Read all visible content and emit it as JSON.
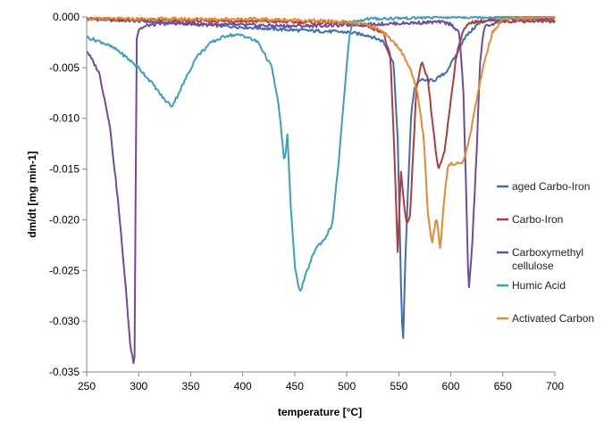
{
  "chart_data": {
    "type": "line",
    "xlabel": "temperature [°C]",
    "ylabel": "dm/dt [mg min-1]",
    "xlim": [
      250,
      700
    ],
    "ylim": [
      -0.035,
      0.0
    ],
    "xticks": [
      250,
      300,
      350,
      400,
      450,
      500,
      550,
      600,
      650,
      700
    ],
    "yticks": [
      -0.035,
      -0.03,
      -0.025,
      -0.02,
      -0.015,
      -0.01,
      -0.005,
      0.0
    ],
    "grid": false,
    "legend_position": "right",
    "series": [
      {
        "name": "aged Carbo-Iron",
        "color": "#3d6eb4",
        "x": [
          250,
          300,
          350,
          400,
          450,
          500,
          520,
          535,
          545,
          549,
          552,
          554,
          556,
          559,
          562,
          565,
          570,
          578,
          585,
          595,
          605,
          612,
          625,
          635,
          645,
          660,
          700
        ],
        "y": [
          -0.0002,
          -0.0004,
          -0.0007,
          -0.001,
          -0.0013,
          -0.0015,
          -0.0018,
          -0.0024,
          -0.0045,
          -0.012,
          -0.026,
          -0.0328,
          -0.025,
          -0.0165,
          -0.0095,
          -0.007,
          -0.0062,
          -0.0063,
          -0.0062,
          -0.0055,
          -0.0038,
          -0.0022,
          -0.0008,
          -0.0003,
          -0.0001,
          0.0,
          0.0
        ]
      },
      {
        "name": "Carbo-Iron",
        "color": "#b33b3b",
        "x": [
          250,
          300,
          350,
          400,
          450,
          500,
          520,
          535,
          542,
          546,
          549,
          552,
          555,
          558,
          561,
          564,
          567,
          572,
          578,
          583,
          588,
          594,
          600,
          605,
          612,
          620,
          630,
          650,
          700
        ],
        "y": [
          -0.0002,
          -0.0003,
          -0.0004,
          -0.0004,
          -0.0005,
          -0.0006,
          -0.0009,
          -0.0015,
          -0.004,
          -0.014,
          -0.0235,
          -0.015,
          -0.0185,
          -0.0205,
          -0.0195,
          -0.013,
          -0.007,
          -0.0045,
          -0.0062,
          -0.011,
          -0.0152,
          -0.0132,
          -0.0082,
          -0.004,
          -0.0012,
          -0.0005,
          -0.0004,
          -0.0004,
          -0.0004
        ]
      },
      {
        "name": "Carboxymethyl cellulose",
        "color": "#6f4aa0",
        "x": [
          250,
          262,
          272,
          280,
          287,
          292,
          296,
          298,
          300,
          310,
          330,
          360,
          400,
          450,
          500,
          560,
          590,
          600,
          608,
          612,
          615,
          617,
          620,
          625,
          628,
          632,
          650,
          700
        ],
        "y": [
          -0.0033,
          -0.0055,
          -0.0105,
          -0.018,
          -0.026,
          -0.0325,
          -0.0345,
          -0.0022,
          -0.0012,
          -0.0008,
          -0.0006,
          -0.0007,
          -0.0008,
          -0.0009,
          -0.0008,
          -0.0006,
          -0.0005,
          -0.0007,
          -0.0015,
          -0.007,
          -0.018,
          -0.0272,
          -0.0235,
          -0.013,
          -0.0045,
          -0.001,
          -0.0003,
          -0.0002
        ]
      },
      {
        "name": "Humic Acid",
        "color": "#3aa0bc",
        "x": [
          250,
          265,
          280,
          300,
          315,
          325,
          332,
          340,
          355,
          370,
          385,
          400,
          415,
          428,
          435,
          440,
          443,
          446,
          450,
          455,
          462,
          470,
          478,
          486,
          492,
          497,
          502,
          505,
          520,
          560,
          600,
          700
        ],
        "y": [
          -0.002,
          -0.0025,
          -0.0033,
          -0.005,
          -0.0068,
          -0.0082,
          -0.0088,
          -0.0072,
          -0.004,
          -0.0025,
          -0.0018,
          -0.0018,
          -0.0025,
          -0.005,
          -0.009,
          -0.0145,
          -0.0115,
          -0.0185,
          -0.0245,
          -0.0272,
          -0.025,
          -0.0228,
          -0.022,
          -0.0205,
          -0.0145,
          -0.0085,
          -0.0025,
          -0.0005,
          -0.0002,
          -0.0001,
          0.0,
          0.0
        ]
      },
      {
        "name": "Activated Carbon",
        "color": "#e8892c",
        "x": [
          250,
          300,
          350,
          400,
          450,
          500,
          520,
          535,
          550,
          560,
          568,
          574,
          578,
          582,
          586,
          590,
          593,
          597,
          600,
          606,
          612,
          618,
          625,
          632,
          640,
          650,
          700
        ],
        "y": [
          -0.0002,
          -0.0002,
          -0.0002,
          -0.0002,
          -0.0003,
          -0.0005,
          -0.0008,
          -0.0015,
          -0.003,
          -0.0048,
          -0.0075,
          -0.012,
          -0.0195,
          -0.0225,
          -0.0195,
          -0.023,
          -0.0185,
          -0.0148,
          -0.0145,
          -0.0145,
          -0.0142,
          -0.012,
          -0.008,
          -0.0045,
          -0.0015,
          -0.0002,
          0.0
        ]
      }
    ]
  }
}
